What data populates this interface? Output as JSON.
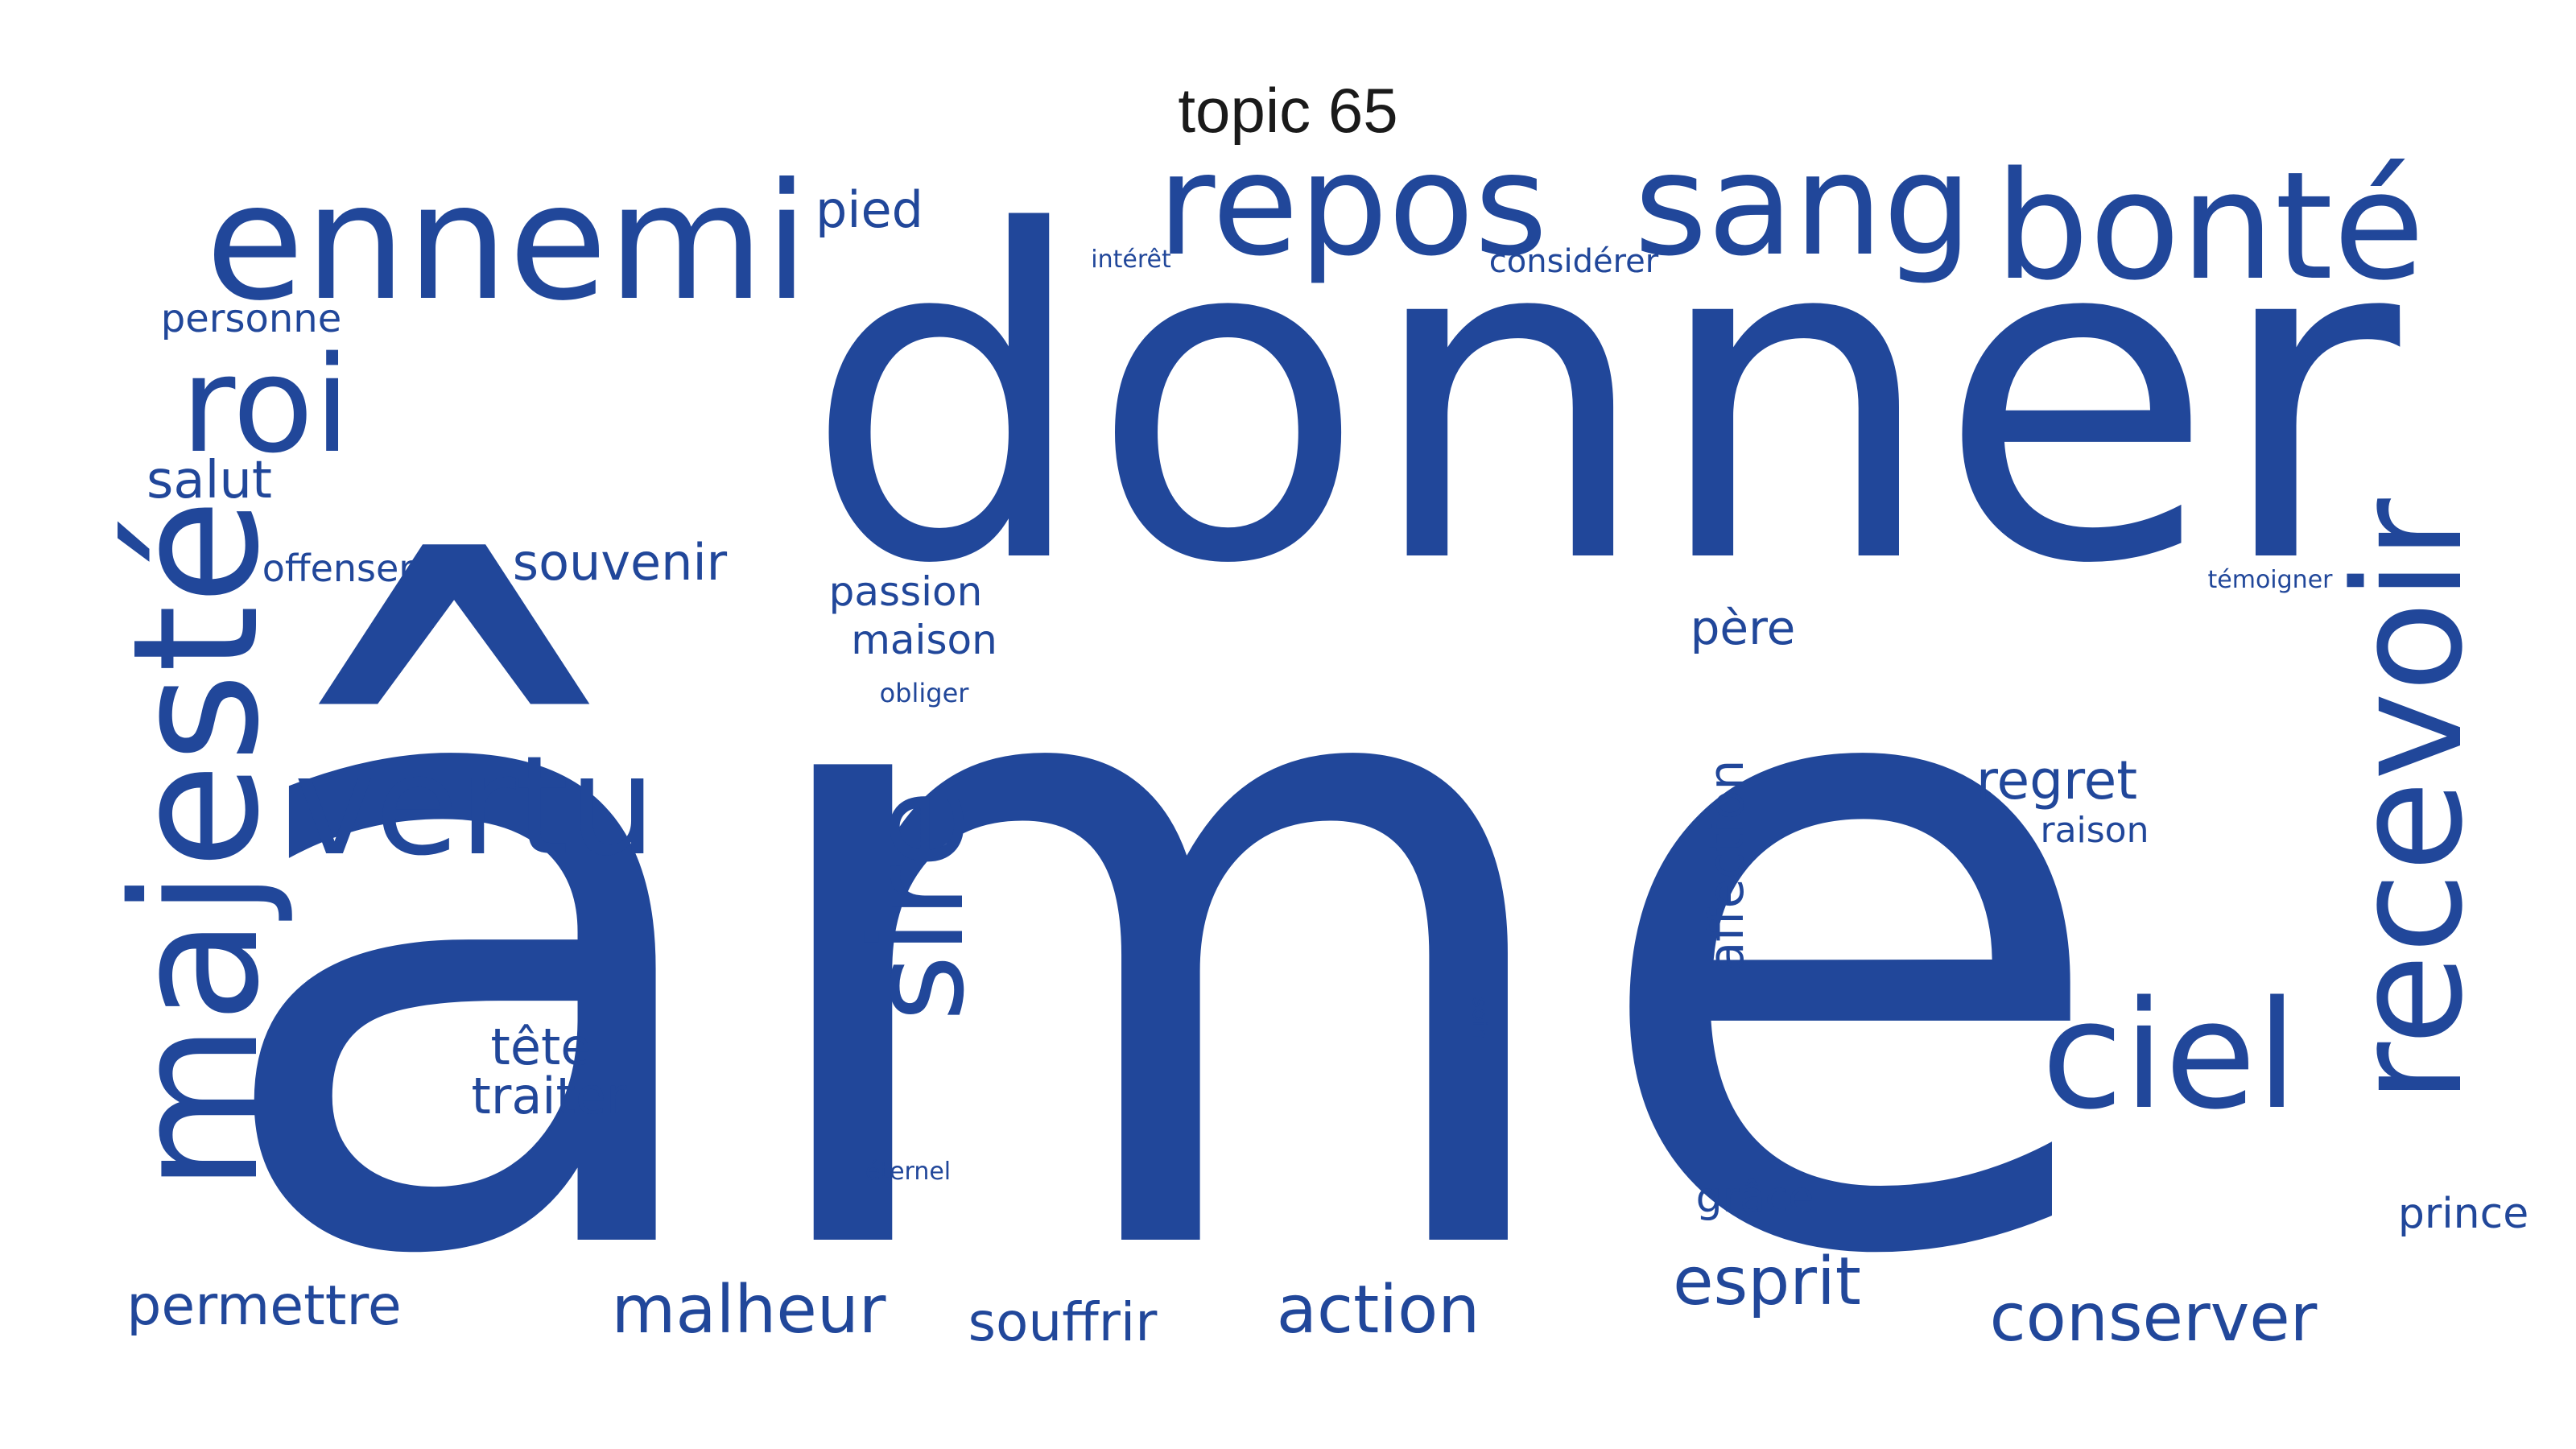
{
  "title": "topic 65",
  "color": "#21479a",
  "words": [
    {
      "id": "ame",
      "text": "âme"
    },
    {
      "id": "donner",
      "text": "donner"
    },
    {
      "id": "ennemi",
      "text": "ennemi"
    },
    {
      "id": "repos",
      "text": "repos"
    },
    {
      "id": "sang",
      "text": "sang"
    },
    {
      "id": "bonte",
      "text": "bonté"
    },
    {
      "id": "roi",
      "text": "roi"
    },
    {
      "id": "majeste",
      "text": "majesté"
    },
    {
      "id": "recevoir",
      "text": "recevoir"
    },
    {
      "id": "vertu",
      "text": "vertu"
    },
    {
      "id": "sire",
      "text": "sire"
    },
    {
      "id": "ciel",
      "text": "ciel"
    },
    {
      "id": "pied",
      "text": "pied"
    },
    {
      "id": "interet",
      "text": "intérêt"
    },
    {
      "id": "considerer",
      "text": "considérer"
    },
    {
      "id": "personne",
      "text": "personne"
    },
    {
      "id": "salut",
      "text": "salut"
    },
    {
      "id": "offenser",
      "text": "offenser"
    },
    {
      "id": "souvenir",
      "text": "souvenir"
    },
    {
      "id": "passion",
      "text": "passion"
    },
    {
      "id": "maison",
      "text": "maison"
    },
    {
      "id": "obliger",
      "text": "obliger"
    },
    {
      "id": "pere",
      "text": "père"
    },
    {
      "id": "affection",
      "text": "affection"
    },
    {
      "id": "regret",
      "text": "regret"
    },
    {
      "id": "raison",
      "text": "raison"
    },
    {
      "id": "temoigner",
      "text": "témoigner"
    },
    {
      "id": "tete",
      "text": "tête"
    },
    {
      "id": "traiter",
      "text": "traiter"
    },
    {
      "id": "soin",
      "text": "soin"
    },
    {
      "id": "eternel",
      "text": "éternel"
    },
    {
      "id": "grace",
      "text": "grâce"
    },
    {
      "id": "prince",
      "text": "prince"
    },
    {
      "id": "esprit",
      "text": "esprit"
    },
    {
      "id": "permettre",
      "text": "permettre"
    },
    {
      "id": "malheur",
      "text": "malheur"
    },
    {
      "id": "souffrir",
      "text": "souffrir"
    },
    {
      "id": "action",
      "text": "action"
    },
    {
      "id": "conserver",
      "text": "conserver"
    }
  ]
}
